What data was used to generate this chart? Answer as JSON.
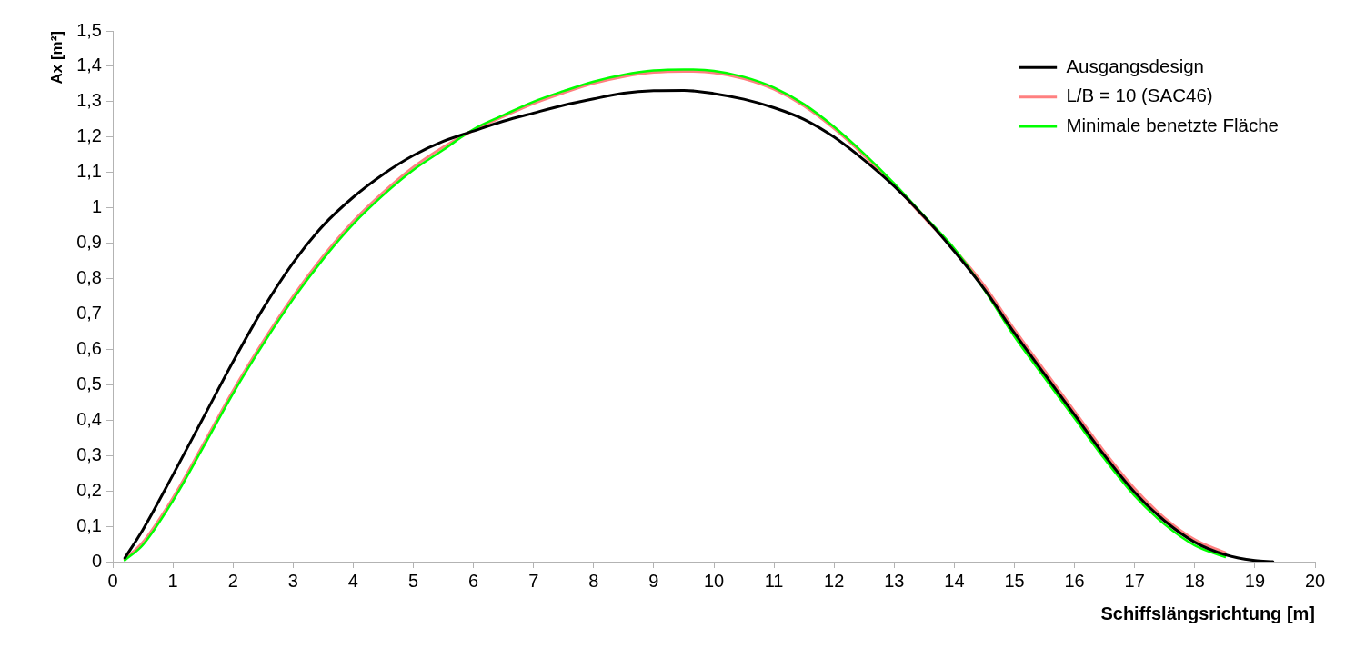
{
  "chart_data": {
    "type": "line",
    "xlabel": "Schiffslängsrichtung [m]",
    "ylabel": "Ax [m²]",
    "x": [
      0.2,
      0.5,
      1,
      1.5,
      2,
      2.5,
      3,
      3.5,
      4,
      4.5,
      5,
      5.5,
      6,
      6.5,
      7,
      7.5,
      8,
      8.5,
      9,
      9.5,
      10,
      10.5,
      11,
      11.5,
      12,
      12.5,
      13,
      13.5,
      14,
      14.5,
      15,
      15.5,
      16,
      16.5,
      17,
      17.5,
      18,
      18.5,
      19,
      19.3
    ],
    "series": [
      {
        "name": "Ausgangsdesign",
        "color": "#000000",
        "values": [
          0.01,
          0.09,
          0.245,
          0.405,
          0.565,
          0.715,
          0.845,
          0.95,
          1.03,
          1.095,
          1.148,
          1.188,
          1.217,
          1.245,
          1.268,
          1.29,
          1.308,
          1.324,
          1.331,
          1.332,
          1.323,
          1.307,
          1.283,
          1.25,
          1.2,
          1.135,
          1.061,
          0.975,
          0.877,
          0.77,
          0.646,
          0.53,
          0.415,
          0.3,
          0.196,
          0.115,
          0.055,
          0.02,
          0.003,
          0
        ]
      },
      {
        "name": "L/B = 10 (SAC46)",
        "color": "#ff8080",
        "values": [
          0.007,
          0.055,
          0.18,
          0.33,
          0.483,
          0.622,
          0.75,
          0.863,
          0.962,
          1.044,
          1.115,
          1.172,
          1.219,
          1.258,
          1.295,
          1.325,
          1.352,
          1.371,
          1.383,
          1.386,
          1.382,
          1.365,
          1.335,
          1.288,
          1.224,
          1.148,
          1.064,
          0.972,
          0.882,
          0.78,
          0.656,
          0.54,
          0.425,
          0.31,
          0.206,
          0.123,
          0.062,
          0.026,
          null,
          null
        ]
      },
      {
        "name": "Minimale benetzte Fläche",
        "color": "#00ff00",
        "values": [
          0.004,
          0.047,
          0.172,
          0.322,
          0.475,
          0.614,
          0.742,
          0.855,
          0.954,
          1.036,
          1.107,
          1.164,
          1.222,
          1.262,
          1.3,
          1.33,
          1.357,
          1.376,
          1.388,
          1.391,
          1.387,
          1.37,
          1.34,
          1.293,
          1.229,
          1.153,
          1.069,
          0.977,
          0.885,
          0.768,
          0.636,
          0.52,
          0.405,
          0.29,
          0.186,
          0.105,
          0.046,
          0.013,
          null,
          null
        ]
      }
    ],
    "xlim": [
      0,
      20
    ],
    "xticks": [
      0,
      1,
      2,
      3,
      4,
      5,
      6,
      7,
      8,
      9,
      10,
      11,
      12,
      13,
      14,
      15,
      16,
      17,
      18,
      19,
      20
    ],
    "ylim": [
      0,
      1.5
    ],
    "yticks": [
      0,
      {
        "value": 0.1,
        "label": "0,1"
      },
      {
        "value": 0.2,
        "label": "0,2"
      },
      {
        "value": 0.3,
        "label": "0,3"
      },
      {
        "value": 0.4,
        "label": "0,4"
      },
      {
        "value": 0.5,
        "label": "0,5"
      },
      {
        "value": 0.6,
        "label": "0,6"
      },
      {
        "value": 0.7,
        "label": "0,7"
      },
      {
        "value": 0.8,
        "label": "0,8"
      },
      {
        "value": 0.9,
        "label": "0,9"
      },
      1,
      {
        "value": 1.1,
        "label": "1,1"
      },
      {
        "value": 1.2,
        "label": "1,2"
      },
      {
        "value": 1.3,
        "label": "1,3"
      },
      {
        "value": 1.4,
        "label": "1,4"
      },
      {
        "value": 1.5,
        "label": "1,5"
      }
    ],
    "grid": false,
    "legend": "top right"
  }
}
